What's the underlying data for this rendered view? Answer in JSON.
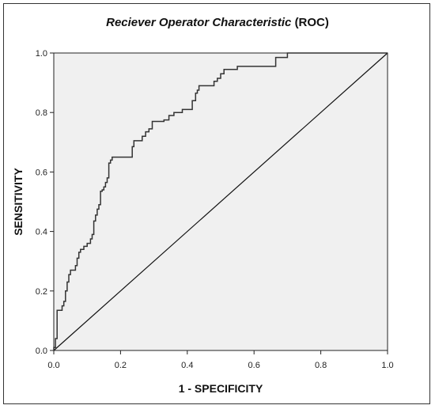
{
  "chart_data": {
    "type": "line",
    "title_italic": "Reciever Operator Characteristic",
    "title_normal": "(ROC)",
    "xlabel": "1 - SPECIFICITY",
    "ylabel": "SENSITIVITY",
    "xlim": [
      0.0,
      1.0
    ],
    "ylim": [
      0.0,
      1.0
    ],
    "x_ticks": [
      "0.0",
      "0.2",
      "0.4",
      "0.6",
      "0.8",
      "1.0"
    ],
    "y_ticks": [
      "0.0",
      "0.2",
      "0.4",
      "0.6",
      "0.8",
      "1.0"
    ],
    "grid": false,
    "background_color": "#f0f0f0",
    "line_color": "#333333",
    "series": [
      {
        "values_xy": [
          [
            0.0,
            0.0
          ],
          [
            0.0,
            0.01
          ],
          [
            0.005,
            0.01
          ],
          [
            0.005,
            0.04
          ],
          [
            0.01,
            0.04
          ],
          [
            0.01,
            0.135
          ],
          [
            0.025,
            0.135
          ],
          [
            0.025,
            0.15
          ],
          [
            0.03,
            0.15
          ],
          [
            0.03,
            0.165
          ],
          [
            0.035,
            0.165
          ],
          [
            0.035,
            0.2
          ],
          [
            0.04,
            0.2
          ],
          [
            0.04,
            0.23
          ],
          [
            0.045,
            0.23
          ],
          [
            0.045,
            0.255
          ],
          [
            0.05,
            0.255
          ],
          [
            0.05,
            0.27
          ],
          [
            0.065,
            0.27
          ],
          [
            0.065,
            0.285
          ],
          [
            0.07,
            0.285
          ],
          [
            0.07,
            0.31
          ],
          [
            0.075,
            0.31
          ],
          [
            0.075,
            0.33
          ],
          [
            0.08,
            0.33
          ],
          [
            0.08,
            0.34
          ],
          [
            0.09,
            0.34
          ],
          [
            0.09,
            0.35
          ],
          [
            0.1,
            0.35
          ],
          [
            0.1,
            0.36
          ],
          [
            0.11,
            0.36
          ],
          [
            0.11,
            0.375
          ],
          [
            0.115,
            0.375
          ],
          [
            0.115,
            0.39
          ],
          [
            0.12,
            0.39
          ],
          [
            0.12,
            0.435
          ],
          [
            0.125,
            0.435
          ],
          [
            0.125,
            0.455
          ],
          [
            0.13,
            0.455
          ],
          [
            0.13,
            0.475
          ],
          [
            0.135,
            0.475
          ],
          [
            0.135,
            0.49
          ],
          [
            0.14,
            0.49
          ],
          [
            0.14,
            0.535
          ],
          [
            0.145,
            0.535
          ],
          [
            0.145,
            0.54
          ],
          [
            0.15,
            0.54
          ],
          [
            0.15,
            0.55
          ],
          [
            0.155,
            0.55
          ],
          [
            0.155,
            0.565
          ],
          [
            0.16,
            0.565
          ],
          [
            0.16,
            0.58
          ],
          [
            0.165,
            0.58
          ],
          [
            0.165,
            0.63
          ],
          [
            0.17,
            0.63
          ],
          [
            0.17,
            0.64
          ],
          [
            0.175,
            0.64
          ],
          [
            0.175,
            0.65
          ],
          [
            0.235,
            0.65
          ],
          [
            0.235,
            0.685
          ],
          [
            0.24,
            0.685
          ],
          [
            0.24,
            0.705
          ],
          [
            0.265,
            0.705
          ],
          [
            0.265,
            0.72
          ],
          [
            0.275,
            0.72
          ],
          [
            0.275,
            0.735
          ],
          [
            0.285,
            0.735
          ],
          [
            0.285,
            0.745
          ],
          [
            0.295,
            0.745
          ],
          [
            0.295,
            0.77
          ],
          [
            0.33,
            0.77
          ],
          [
            0.33,
            0.775
          ],
          [
            0.345,
            0.775
          ],
          [
            0.345,
            0.79
          ],
          [
            0.36,
            0.79
          ],
          [
            0.36,
            0.8
          ],
          [
            0.385,
            0.8
          ],
          [
            0.385,
            0.81
          ],
          [
            0.415,
            0.81
          ],
          [
            0.415,
            0.84
          ],
          [
            0.425,
            0.84
          ],
          [
            0.425,
            0.865
          ],
          [
            0.43,
            0.865
          ],
          [
            0.43,
            0.875
          ],
          [
            0.435,
            0.875
          ],
          [
            0.435,
            0.89
          ],
          [
            0.48,
            0.89
          ],
          [
            0.48,
            0.905
          ],
          [
            0.49,
            0.905
          ],
          [
            0.49,
            0.915
          ],
          [
            0.5,
            0.915
          ],
          [
            0.5,
            0.93
          ],
          [
            0.51,
            0.93
          ],
          [
            0.51,
            0.945
          ],
          [
            0.55,
            0.945
          ],
          [
            0.55,
            0.955
          ],
          [
            0.665,
            0.955
          ],
          [
            0.665,
            0.985
          ],
          [
            0.7,
            0.985
          ],
          [
            0.7,
            1.0
          ],
          [
            1.0,
            1.0
          ]
        ]
      },
      {
        "values_xy": [
          [
            0.0,
            0.0
          ],
          [
            1.0,
            1.0
          ]
        ]
      }
    ]
  }
}
